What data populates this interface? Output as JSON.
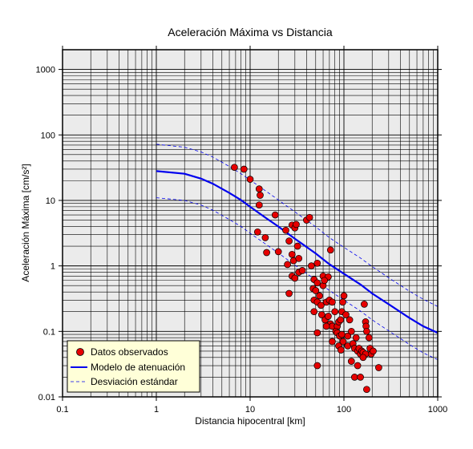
{
  "chart_data": {
    "type": "scatter",
    "title": "Aceleración Máxima vs Distancia",
    "xlabel": "Distancia hipocentral [km]",
    "ylabel": "Aceleración Máxima [cm/s²]",
    "x_scale": "log",
    "y_scale": "log",
    "xlim": [
      0.1,
      1000
    ],
    "ylim": [
      0.01,
      2000
    ],
    "x_ticks": [
      {
        "value": 0.1,
        "label": "0.1"
      },
      {
        "value": 1,
        "label": "1"
      },
      {
        "value": 10,
        "label": "10"
      },
      {
        "value": 100,
        "label": "100"
      },
      {
        "value": 1000,
        "label": "1000"
      }
    ],
    "y_ticks": [
      {
        "value": 0.01,
        "label": "0.01"
      },
      {
        "value": 0.1,
        "label": "0.1"
      },
      {
        "value": 1,
        "label": "1"
      },
      {
        "value": 10,
        "label": "10"
      },
      {
        "value": 100,
        "label": "100"
      },
      {
        "value": 1000,
        "label": "1000"
      }
    ],
    "grid": true,
    "legend_position": "bottom-left",
    "background_color": "#ebebeb",
    "series": [
      {
        "name": "Datos observados",
        "kind": "points",
        "color": "#e60000",
        "points": [
          [
            6.8,
            32
          ],
          [
            8.6,
            30
          ],
          [
            10,
            21
          ],
          [
            12.5,
            15
          ],
          [
            12.8,
            12
          ],
          [
            12.5,
            8.5
          ],
          [
            18.5,
            6
          ],
          [
            12,
            3.3
          ],
          [
            14.5,
            2.7
          ],
          [
            15,
            1.6
          ],
          [
            20,
            1.65
          ],
          [
            24,
            3.5
          ],
          [
            28,
            4.2
          ],
          [
            30,
            3.8
          ],
          [
            31,
            4.3
          ],
          [
            40,
            5
          ],
          [
            43,
            5.5
          ],
          [
            26,
            2.4
          ],
          [
            32,
            2
          ],
          [
            28,
            1.5
          ],
          [
            29,
            1.2
          ],
          [
            33,
            1.3
          ],
          [
            25,
            1.05
          ],
          [
            33,
            0.8
          ],
          [
            36,
            0.85
          ],
          [
            28,
            0.7
          ],
          [
            30,
            0.65
          ],
          [
            26,
            0.38
          ],
          [
            45,
            1
          ],
          [
            52,
            1.1
          ],
          [
            60,
            0.7
          ],
          [
            68,
            0.68
          ],
          [
            72,
            1.75
          ],
          [
            48,
            0.62
          ],
          [
            52,
            0.55
          ],
          [
            47,
            0.45
          ],
          [
            50,
            0.42
          ],
          [
            55,
            0.35
          ],
          [
            60,
            0.5
          ],
          [
            62,
            0.6
          ],
          [
            48,
            0.3
          ],
          [
            52,
            0.28
          ],
          [
            57,
            0.25
          ],
          [
            65,
            0.28
          ],
          [
            70,
            0.3
          ],
          [
            75,
            0.28
          ],
          [
            80,
            0.2
          ],
          [
            48,
            0.2
          ],
          [
            58,
            0.18
          ],
          [
            63,
            0.15
          ],
          [
            68,
            0.17
          ],
          [
            72,
            0.13
          ],
          [
            75,
            0.12
          ],
          [
            85,
            0.12
          ],
          [
            88,
            0.14
          ],
          [
            92,
            0.15
          ],
          [
            97,
            0.28
          ],
          [
            100,
            0.35
          ],
          [
            95,
            0.2
          ],
          [
            105,
            0.18
          ],
          [
            52,
            0.095
          ],
          [
            65,
            0.12
          ],
          [
            75,
            0.07
          ],
          [
            82,
            0.1
          ],
          [
            85,
            0.095
          ],
          [
            90,
            0.085
          ],
          [
            95,
            0.09
          ],
          [
            98,
            0.07
          ],
          [
            110,
            0.06
          ],
          [
            88,
            0.06
          ],
          [
            93,
            0.052
          ],
          [
            110,
            0.085
          ],
          [
            120,
            0.1
          ],
          [
            125,
            0.065
          ],
          [
            130,
            0.055
          ],
          [
            135,
            0.08
          ],
          [
            140,
            0.05
          ],
          [
            145,
            0.055
          ],
          [
            150,
            0.045
          ],
          [
            155,
            0.05
          ],
          [
            160,
            0.048
          ],
          [
            165,
            0.26
          ],
          [
            170,
            0.14
          ],
          [
            172,
            0.12
          ],
          [
            175,
            0.1
          ],
          [
            185,
            0.08
          ],
          [
            190,
            0.055
          ],
          [
            195,
            0.045
          ],
          [
            205,
            0.05
          ],
          [
            170,
            0.045
          ],
          [
            140,
            0.03
          ],
          [
            160,
            0.04
          ],
          [
            130,
            0.02
          ],
          [
            150,
            0.02
          ],
          [
            175,
            0.013
          ],
          [
            235,
            0.028
          ],
          [
            115,
            0.15
          ],
          [
            52,
            0.03
          ],
          [
            120,
            0.035
          ]
        ]
      },
      {
        "name": "Modelo de atenuación",
        "kind": "line",
        "color": "#0000ee",
        "points": [
          [
            1,
            28
          ],
          [
            2,
            25.5
          ],
          [
            3,
            21.5
          ],
          [
            4,
            18
          ],
          [
            6,
            13
          ],
          [
            8,
            10.1
          ],
          [
            10,
            8
          ],
          [
            15,
            5.3
          ],
          [
            20,
            4
          ],
          [
            30,
            2.6
          ],
          [
            50,
            1.55
          ],
          [
            70,
            1.06
          ],
          [
            100,
            0.76
          ],
          [
            150,
            0.52
          ],
          [
            200,
            0.38
          ],
          [
            300,
            0.26
          ],
          [
            500,
            0.16
          ],
          [
            700,
            0.12
          ],
          [
            1000,
            0.095
          ]
        ]
      },
      {
        "name": "Desviación estándar",
        "kind": "dashed-lines",
        "color": "#0000ee",
        "upper": [
          [
            1,
            72
          ],
          [
            2,
            65
          ],
          [
            3,
            55
          ],
          [
            4,
            46
          ],
          [
            6,
            33
          ],
          [
            8,
            25.5
          ],
          [
            10,
            20.5
          ],
          [
            15,
            13.6
          ],
          [
            20,
            10.2
          ],
          [
            30,
            6.7
          ],
          [
            50,
            3.95
          ],
          [
            70,
            2.7
          ],
          [
            100,
            1.92
          ],
          [
            150,
            1.32
          ],
          [
            200,
            0.98
          ],
          [
            300,
            0.66
          ],
          [
            500,
            0.41
          ],
          [
            700,
            0.31
          ],
          [
            1000,
            0.24
          ]
        ],
        "lower": [
          [
            1,
            11
          ],
          [
            2,
            10
          ],
          [
            3,
            8.5
          ],
          [
            4,
            7.1
          ],
          [
            6,
            5.1
          ],
          [
            8,
            4
          ],
          [
            10,
            3.15
          ],
          [
            15,
            2.1
          ],
          [
            20,
            1.57
          ],
          [
            30,
            1.03
          ],
          [
            50,
            0.61
          ],
          [
            70,
            0.42
          ],
          [
            100,
            0.3
          ],
          [
            150,
            0.205
          ],
          [
            200,
            0.15
          ],
          [
            300,
            0.102
          ],
          [
            500,
            0.063
          ],
          [
            700,
            0.047
          ],
          [
            1000,
            0.037
          ]
        ]
      }
    ]
  }
}
